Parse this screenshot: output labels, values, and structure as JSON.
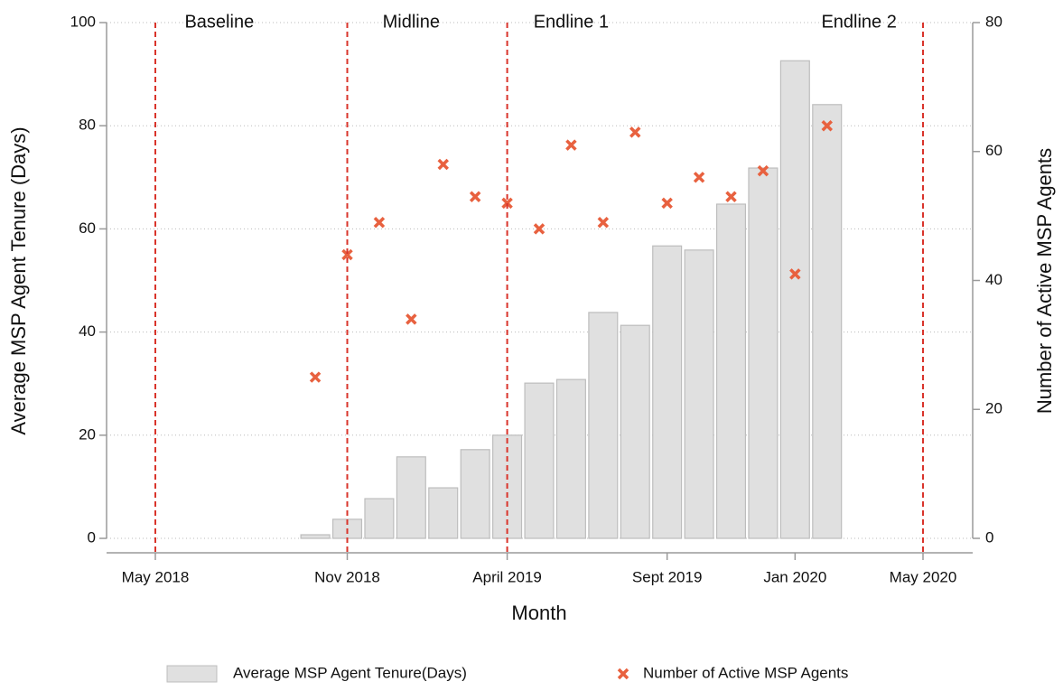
{
  "chart_data": {
    "type": "bar",
    "x_label": "Month",
    "y_label": "Average MSP Agent Tenure (Days)",
    "y2_label": "Number of Active MSP Agents",
    "x": [
      "2018-10",
      "2018-11",
      "2018-12",
      "2019-01",
      "2019-02",
      "2019-03",
      "2019-04",
      "2019-05",
      "2019-06",
      "2019-07",
      "2019-08",
      "2019-09",
      "2019-10",
      "2019-11",
      "2019-12",
      "2020-01",
      "2020-02"
    ],
    "series": [
      {
        "name": "Average MSP Agent Tenure(Days)",
        "type": "bar",
        "color": "#e0e0e0",
        "edge_color": "#bdbdbd",
        "values": [
          0.7,
          3.7,
          7.7,
          15.8,
          9.8,
          17.2,
          20.0,
          30.1,
          30.8,
          43.8,
          41.3,
          56.7,
          55.9,
          64.8,
          71.8,
          92.6,
          84.1
        ]
      },
      {
        "name": "Number of Active MSP Agents",
        "type": "scatter",
        "axis": "y2",
        "color": "#e8613f",
        "values": [
          25,
          44,
          49,
          34,
          58,
          53,
          52,
          48,
          61,
          49,
          63,
          52,
          56,
          53,
          57,
          41,
          64
        ]
      }
    ],
    "xlim": [
      "2018-05",
      "2020-05"
    ],
    "xticks": [
      {
        "value": "2018-05",
        "label": "May 2018"
      },
      {
        "value": "2018-11",
        "label": "Nov 2018"
      },
      {
        "value": "2019-04",
        "label": "April 2019"
      },
      {
        "value": "2019-09",
        "label": "Sept 2019"
      },
      {
        "value": "2020-01",
        "label": "Jan 2020"
      },
      {
        "value": "2020-05",
        "label": "May 2020"
      }
    ],
    "ylim": [
      -2.8,
      100
    ],
    "yticks": [
      0,
      20,
      40,
      60,
      80,
      100
    ],
    "y2lim": [
      -2.24,
      80
    ],
    "y2ticks": [
      0,
      20,
      40,
      60,
      80
    ],
    "grid": true,
    "phase_lines": {
      "color": "#d9342b",
      "lines": [
        {
          "x": "2018-05",
          "text": "Baseline"
        },
        {
          "x": "2018-11",
          "text": "Midline"
        },
        {
          "x": "2019-04",
          "text": "Endline 1"
        },
        {
          "x": "2020-05",
          "text": "Endline 2"
        }
      ]
    },
    "legend": "bottom"
  }
}
